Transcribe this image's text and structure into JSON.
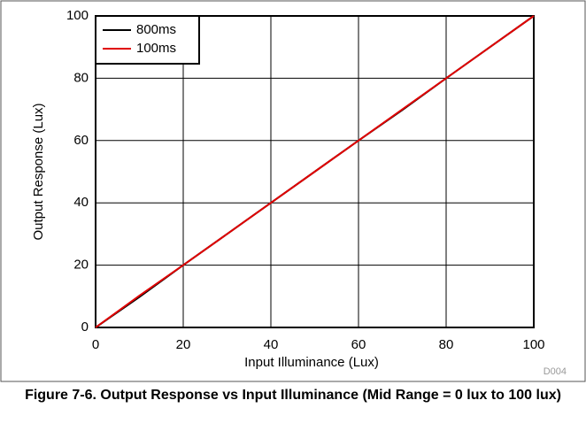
{
  "chart_data": {
    "type": "line",
    "caption": "Figure 7-6. Output Response vs Input Illuminance (Mid Range = 0 lux to 100 lux)",
    "xlabel": "Input Illuminance (Lux)",
    "ylabel": "Output Response (Lux)",
    "annotation": "D004",
    "x": [
      0,
      10,
      20,
      30,
      40,
      50,
      60,
      70,
      80,
      90,
      100
    ],
    "series": [
      {
        "name": "800ms",
        "color": "#000000",
        "values": [
          0,
          9.8,
          20,
          30,
          40,
          50,
          60,
          69.8,
          80,
          90,
          100
        ]
      },
      {
        "name": "100ms",
        "color": "#e00000",
        "values": [
          0,
          10.2,
          20,
          30,
          40,
          50,
          60,
          70,
          80,
          90,
          100
        ]
      }
    ],
    "xlim": [
      0,
      100
    ],
    "ylim": [
      0,
      100
    ],
    "xticks": [
      0,
      20,
      40,
      60,
      80,
      100
    ],
    "yticks": [
      0,
      20,
      40,
      60,
      80,
      100
    ],
    "grid": true,
    "legend": "upper left"
  }
}
